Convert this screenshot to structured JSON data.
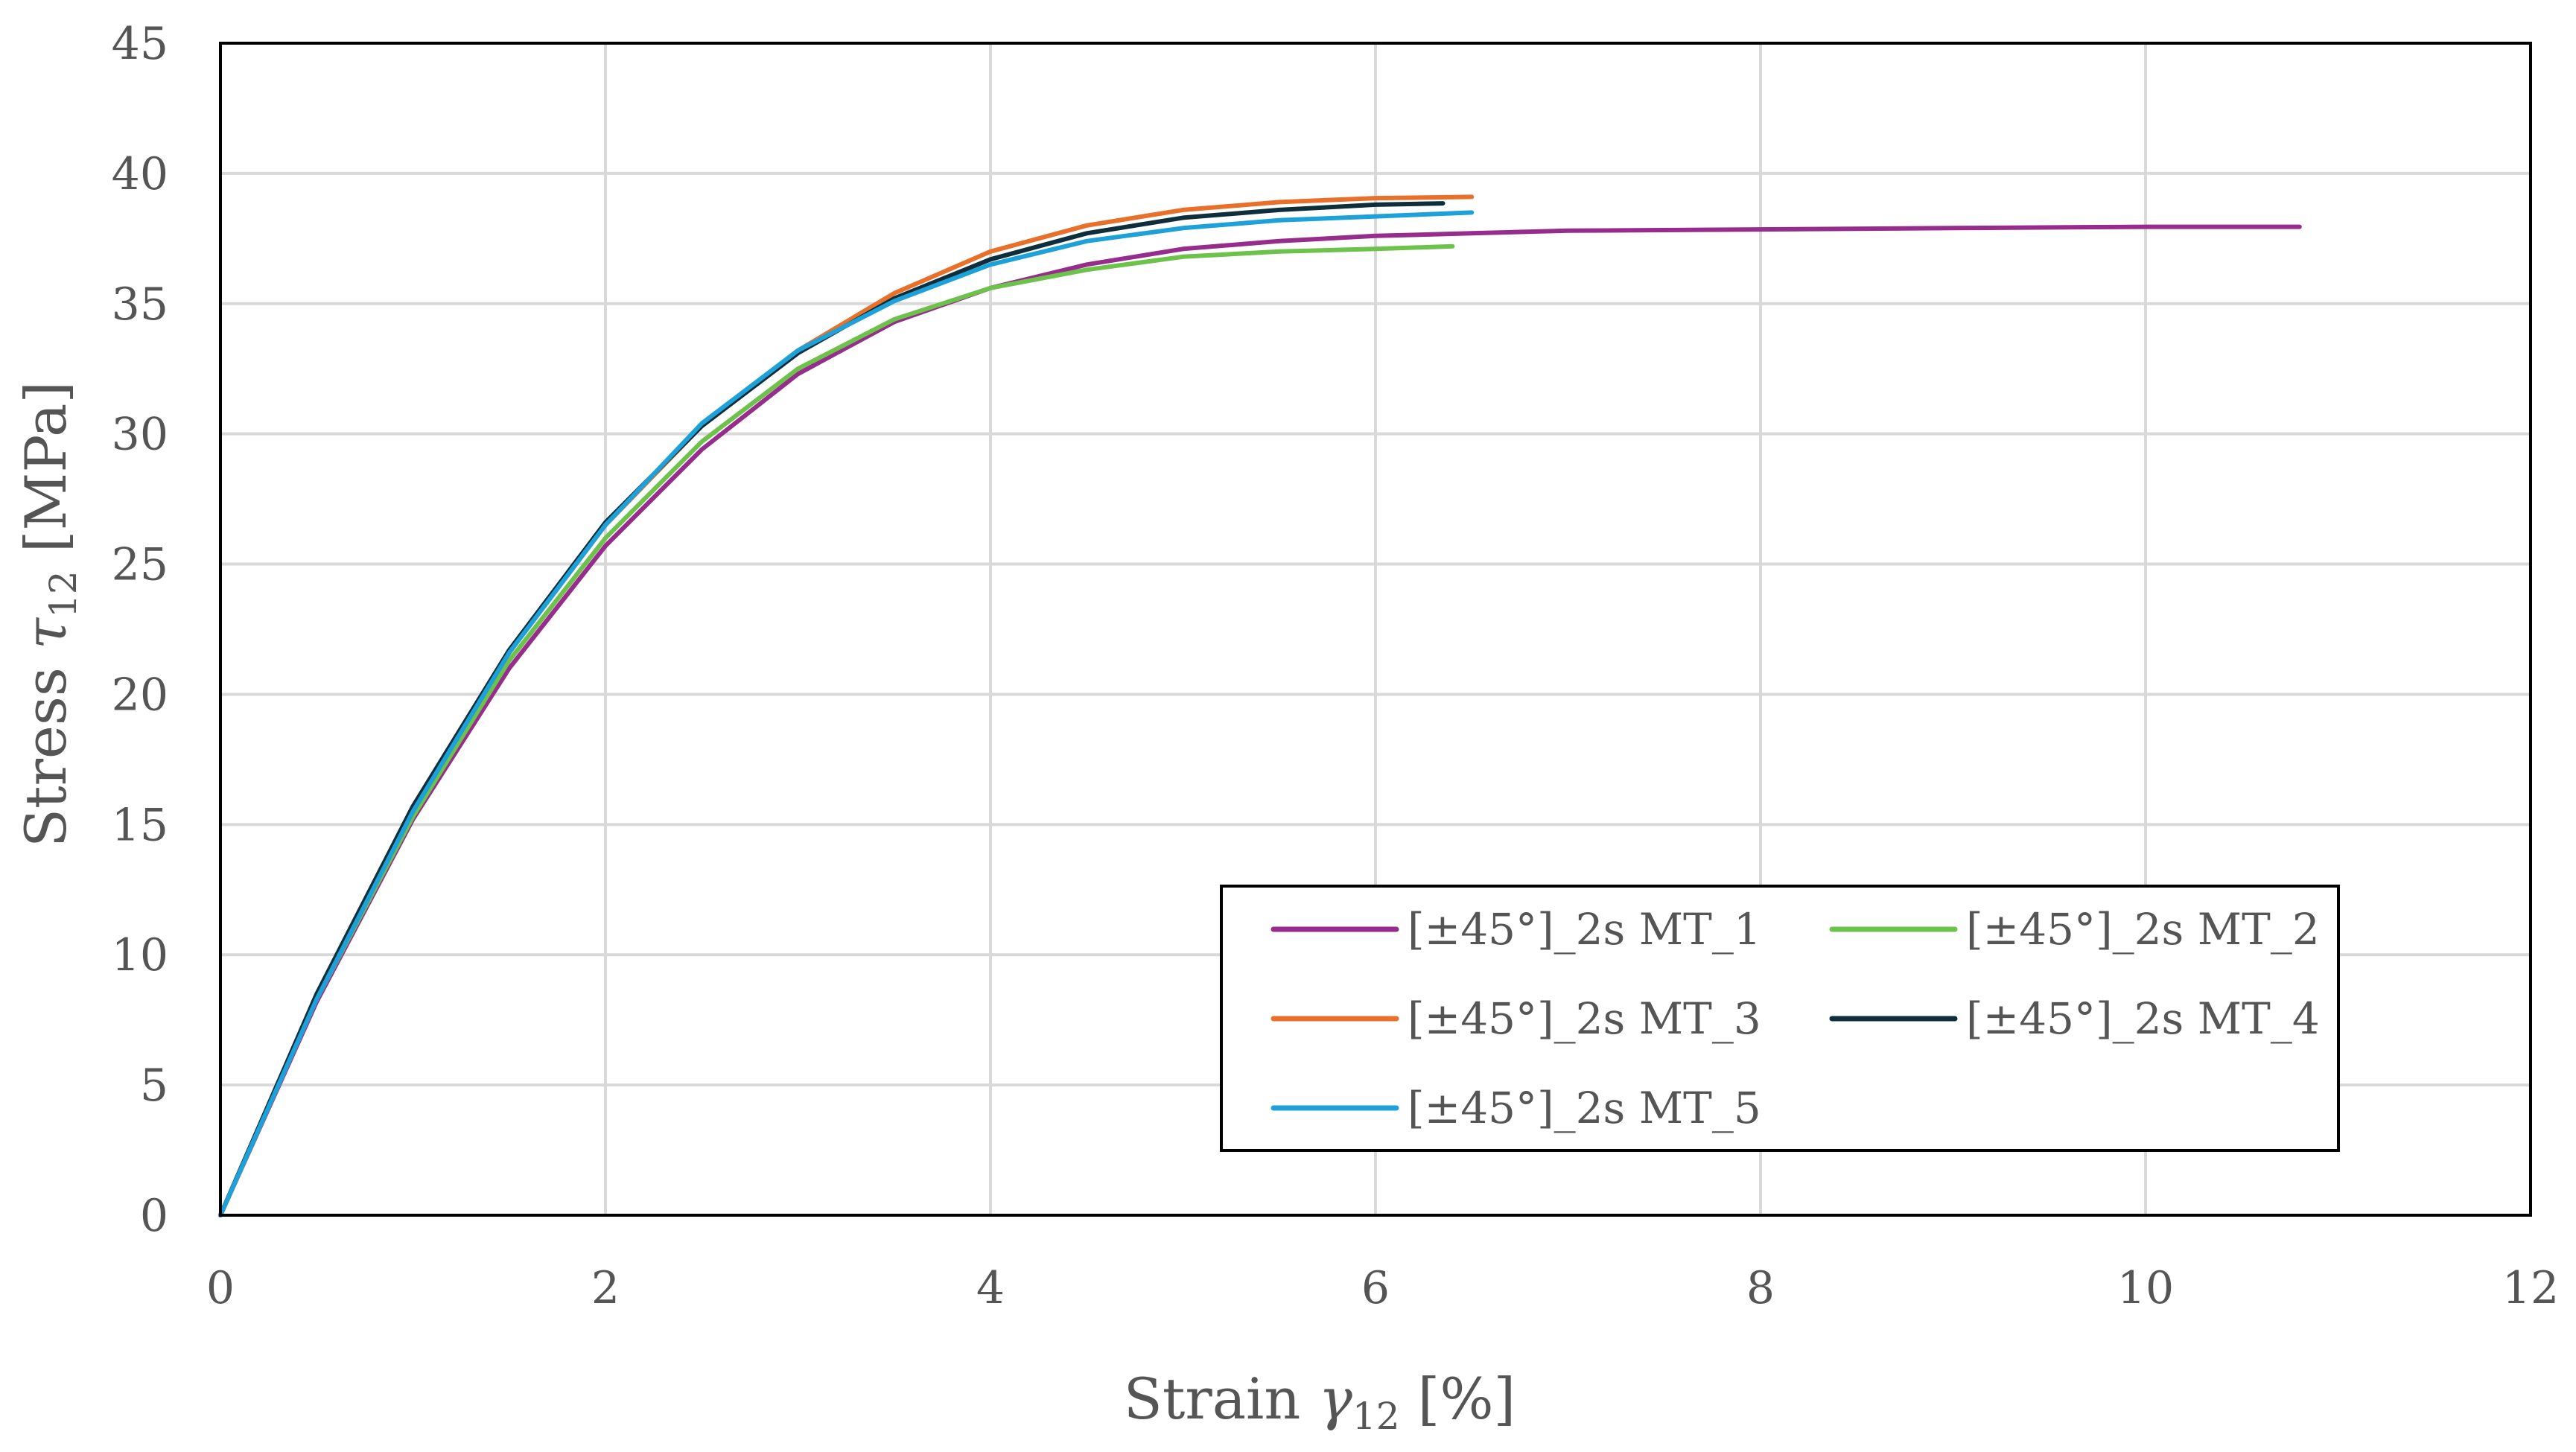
{
  "chart_data": {
    "type": "line",
    "title": "",
    "xlabel": {
      "main": "Strain ",
      "symbol": "γ",
      "sub": "12",
      "unit": " [%]"
    },
    "ylabel": {
      "main": "Stress ",
      "symbol": "τ",
      "sub": "12",
      "unit": " [MPa]"
    },
    "xlim": [
      0,
      12
    ],
    "ylim": [
      0,
      45
    ],
    "xticks": [
      0,
      2,
      4,
      6,
      8,
      10,
      12
    ],
    "yticks": [
      0,
      5,
      10,
      15,
      20,
      25,
      30,
      35,
      40,
      45
    ],
    "grid": true,
    "legend_position": "lower-right",
    "series": [
      {
        "name": "[±45°]_2s MT_1",
        "color": "#962c8c",
        "points": [
          [
            0,
            0
          ],
          [
            0.5,
            8.2
          ],
          [
            1,
            15.2
          ],
          [
            1.5,
            21.0
          ],
          [
            2,
            25.7
          ],
          [
            2.5,
            29.4
          ],
          [
            3,
            32.3
          ],
          [
            3.5,
            34.3
          ],
          [
            4,
            35.6
          ],
          [
            4.5,
            36.5
          ],
          [
            5,
            37.1
          ],
          [
            5.5,
            37.4
          ],
          [
            6,
            37.6
          ],
          [
            6.5,
            37.7
          ],
          [
            7,
            37.8
          ],
          [
            8,
            37.85
          ],
          [
            9,
            37.9
          ],
          [
            10,
            37.95
          ],
          [
            10.8,
            37.95
          ]
        ]
      },
      {
        "name": "[±45°]_2s MT_2",
        "color": "#6cc24a",
        "points": [
          [
            0,
            0
          ],
          [
            0.5,
            8.3
          ],
          [
            1,
            15.3
          ],
          [
            1.5,
            21.3
          ],
          [
            2,
            26.0
          ],
          [
            2.5,
            29.7
          ],
          [
            3,
            32.5
          ],
          [
            3.5,
            34.4
          ],
          [
            4,
            35.6
          ],
          [
            4.5,
            36.3
          ],
          [
            5,
            36.8
          ],
          [
            5.5,
            37.0
          ],
          [
            6,
            37.1
          ],
          [
            6.4,
            37.2
          ]
        ]
      },
      {
        "name": "[±45°]_2s MT_3",
        "color": "#e8702a",
        "points": [
          [
            0,
            0
          ],
          [
            0.5,
            8.4
          ],
          [
            1,
            15.6
          ],
          [
            1.5,
            21.6
          ],
          [
            2,
            26.5
          ],
          [
            2.5,
            30.3
          ],
          [
            3,
            33.2
          ],
          [
            3.5,
            35.4
          ],
          [
            4,
            37.0
          ],
          [
            4.5,
            38.0
          ],
          [
            5,
            38.6
          ],
          [
            5.5,
            38.9
          ],
          [
            6,
            39.05
          ],
          [
            6.5,
            39.1
          ]
        ]
      },
      {
        "name": "[±45°]_2s MT_4",
        "color": "#0d2e3a",
        "points": [
          [
            0,
            0
          ],
          [
            0.5,
            8.5
          ],
          [
            1,
            15.7
          ],
          [
            1.5,
            21.7
          ],
          [
            2,
            26.6
          ],
          [
            2.5,
            30.3
          ],
          [
            3,
            33.1
          ],
          [
            3.5,
            35.2
          ],
          [
            4,
            36.7
          ],
          [
            4.5,
            37.7
          ],
          [
            5,
            38.3
          ],
          [
            5.5,
            38.6
          ],
          [
            6,
            38.8
          ],
          [
            6.35,
            38.85
          ]
        ]
      },
      {
        "name": "[±45°]_2s MT_5",
        "color": "#1da1d8",
        "points": [
          [
            0,
            0
          ],
          [
            0.5,
            8.3
          ],
          [
            1,
            15.5
          ],
          [
            1.5,
            21.6
          ],
          [
            2,
            26.5
          ],
          [
            2.5,
            30.4
          ],
          [
            3,
            33.2
          ],
          [
            3.5,
            35.1
          ],
          [
            4,
            36.5
          ],
          [
            4.5,
            37.4
          ],
          [
            5,
            37.9
          ],
          [
            5.5,
            38.2
          ],
          [
            6,
            38.35
          ],
          [
            6.5,
            38.5
          ]
        ]
      }
    ]
  }
}
